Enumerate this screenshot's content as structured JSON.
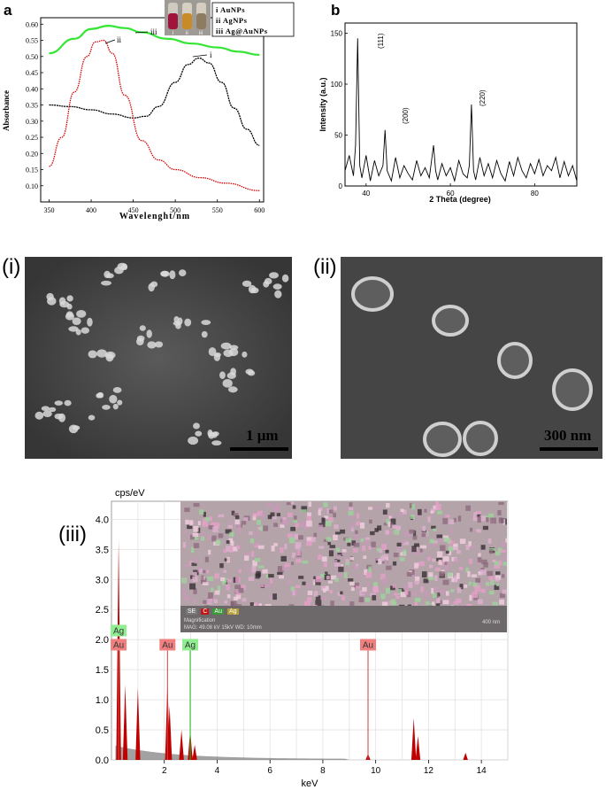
{
  "panel_labels": {
    "a": "a",
    "b": "b",
    "i": "(i)",
    "ii": "(ii)",
    "iii": "(iii)"
  },
  "chart_data": [
    {
      "id": "uvvis",
      "type": "line",
      "title": "",
      "xlabel": "Wavelenght/nm",
      "ylabel": "Absorbance",
      "xlim": [
        340,
        605
      ],
      "ylim": [
        0.05,
        0.62
      ],
      "xticks": [
        350,
        400,
        450,
        500,
        550,
        600
      ],
      "yticks": [
        0.1,
        0.15,
        0.2,
        0.25,
        0.3,
        0.35,
        0.4,
        0.45,
        0.5,
        0.55,
        0.6
      ],
      "yticklabels": [
        "0.10",
        "0.15",
        "0.20",
        "0.25",
        "0.30",
        "0.35",
        "0.40",
        "0.45",
        "0.50",
        "0.55",
        "0.60"
      ],
      "legend": [
        "i   AuNPs",
        "ii   AgNPs",
        "iii  Ag@AuNPs"
      ],
      "legend_position": "top-right",
      "series": [
        {
          "name": "i",
          "color": "#000000",
          "x": [
            350,
            375,
            400,
            425,
            450,
            465,
            480,
            500,
            515,
            528,
            540,
            555,
            570,
            585,
            600
          ],
          "y": [
            0.35,
            0.345,
            0.335,
            0.322,
            0.31,
            0.315,
            0.345,
            0.42,
            0.475,
            0.495,
            0.48,
            0.42,
            0.34,
            0.275,
            0.225
          ]
        },
        {
          "name": "ii",
          "color": "#d40000",
          "x": [
            350,
            365,
            380,
            395,
            405,
            415,
            425,
            440,
            460,
            480,
            500,
            530,
            560,
            600
          ],
          "y": [
            0.16,
            0.25,
            0.39,
            0.5,
            0.545,
            0.55,
            0.51,
            0.38,
            0.24,
            0.18,
            0.15,
            0.125,
            0.108,
            0.085
          ]
        },
        {
          "name": "iii",
          "color": "#33e633",
          "x": [
            350,
            380,
            400,
            420,
            440,
            460,
            490,
            520,
            550,
            575,
            600
          ],
          "y": [
            0.51,
            0.555,
            0.585,
            0.595,
            0.588,
            0.575,
            0.555,
            0.54,
            0.528,
            0.515,
            0.505
          ]
        }
      ],
      "annotations": [
        "i",
        "ii",
        "iii"
      ]
    },
    {
      "id": "xrd",
      "type": "line",
      "title": "",
      "xlabel": "2 Theta (degree)",
      "ylabel": "Intensity (a.u.)",
      "xlim": [
        35,
        90
      ],
      "ylim": [
        0,
        160
      ],
      "xticks": [
        40,
        60,
        80
      ],
      "yticks": [
        0,
        50,
        100,
        150
      ],
      "series": [
        {
          "name": "",
          "color": "#000000",
          "x": [
            35,
            36,
            37,
            37.5,
            38,
            38.5,
            39,
            40,
            41,
            42,
            43,
            44,
            44.5,
            45,
            46,
            47,
            48,
            49,
            50,
            51,
            52,
            53,
            54,
            55,
            56,
            56.5,
            57,
            58,
            59,
            60,
            61,
            62,
            63,
            64,
            64.5,
            65,
            65.5,
            66,
            67,
            68,
            69,
            70,
            71,
            72,
            73,
            74,
            75,
            76,
            77,
            78,
            79,
            80,
            81,
            82,
            83,
            84,
            85,
            86,
            87,
            88,
            89,
            90
          ],
          "y": [
            15,
            30,
            10,
            40,
            145,
            20,
            8,
            30,
            5,
            25,
            10,
            20,
            55,
            15,
            5,
            28,
            8,
            20,
            12,
            6,
            25,
            10,
            18,
            8,
            40,
            15,
            6,
            22,
            10,
            18,
            5,
            25,
            12,
            8,
            20,
            80,
            15,
            6,
            28,
            10,
            22,
            8,
            25,
            12,
            5,
            24,
            10,
            28,
            15,
            8,
            22,
            12,
            26,
            10,
            20,
            15,
            28,
            8,
            24,
            10,
            20,
            5
          ]
        }
      ],
      "annotations": [
        "(111)",
        "(200)",
        "(220)"
      ]
    },
    {
      "id": "eds",
      "type": "bar",
      "title": "",
      "xlabel": "keV",
      "ylabel": "cps/eV",
      "xlim": [
        0,
        15
      ],
      "ylim": [
        0,
        4.3
      ],
      "xticks": [
        2,
        4,
        6,
        8,
        10,
        12,
        14
      ],
      "yticks": [
        0.0,
        0.5,
        1.0,
        1.5,
        2.0,
        2.5,
        3.0,
        3.5,
        4.0
      ],
      "yticklabels": [
        "0.0",
        "0.5",
        "1.0",
        "1.5",
        "2.0",
        "2.5",
        "3.0",
        "3.5",
        "4.0"
      ],
      "peaks": [
        {
          "x": 0.27,
          "y": 3.65
        },
        {
          "x": 0.52,
          "y": 1.25
        },
        {
          "x": 1.0,
          "y": 1.2
        },
        {
          "x": 2.12,
          "y": 1.3
        },
        {
          "x": 2.2,
          "y": 0.9
        },
        {
          "x": 2.65,
          "y": 0.5
        },
        {
          "x": 2.98,
          "y": 0.5
        },
        {
          "x": 3.15,
          "y": 0.25
        },
        {
          "x": 9.71,
          "y": 0.1
        },
        {
          "x": 11.44,
          "y": 0.7
        },
        {
          "x": 11.6,
          "y": 0.4
        },
        {
          "x": 13.4,
          "y": 0.12
        }
      ],
      "element_labels": [
        {
          "text": "Ag",
          "x": 0.27,
          "kind": "ag",
          "row": "upper"
        },
        {
          "text": "Au",
          "x": 0.27,
          "kind": "au",
          "row": "lower"
        },
        {
          "text": "Au",
          "x": 2.12,
          "kind": "au",
          "row": "lower"
        },
        {
          "text": "Ag",
          "x": 2.98,
          "kind": "ag",
          "row": "lower"
        },
        {
          "text": "Au",
          "x": 9.71,
          "kind": "au",
          "row": "lower"
        }
      ],
      "colors": {
        "au": "#f08080",
        "ag": "#90ee90",
        "peak": "#c00000"
      }
    }
  ],
  "sem": {
    "i": {
      "scale": "1 μm"
    },
    "ii": {
      "scale": "300 nm"
    }
  },
  "eds_map": {
    "legend": [
      "SE",
      "C",
      "Au",
      "Ag"
    ],
    "info_line1": "Magnification",
    "info_line2": "MAG: 49.08 kV  15kV  WD: 10mm",
    "scale": "400 nm"
  },
  "vial_labels": [
    "i",
    "ii",
    "iii"
  ]
}
